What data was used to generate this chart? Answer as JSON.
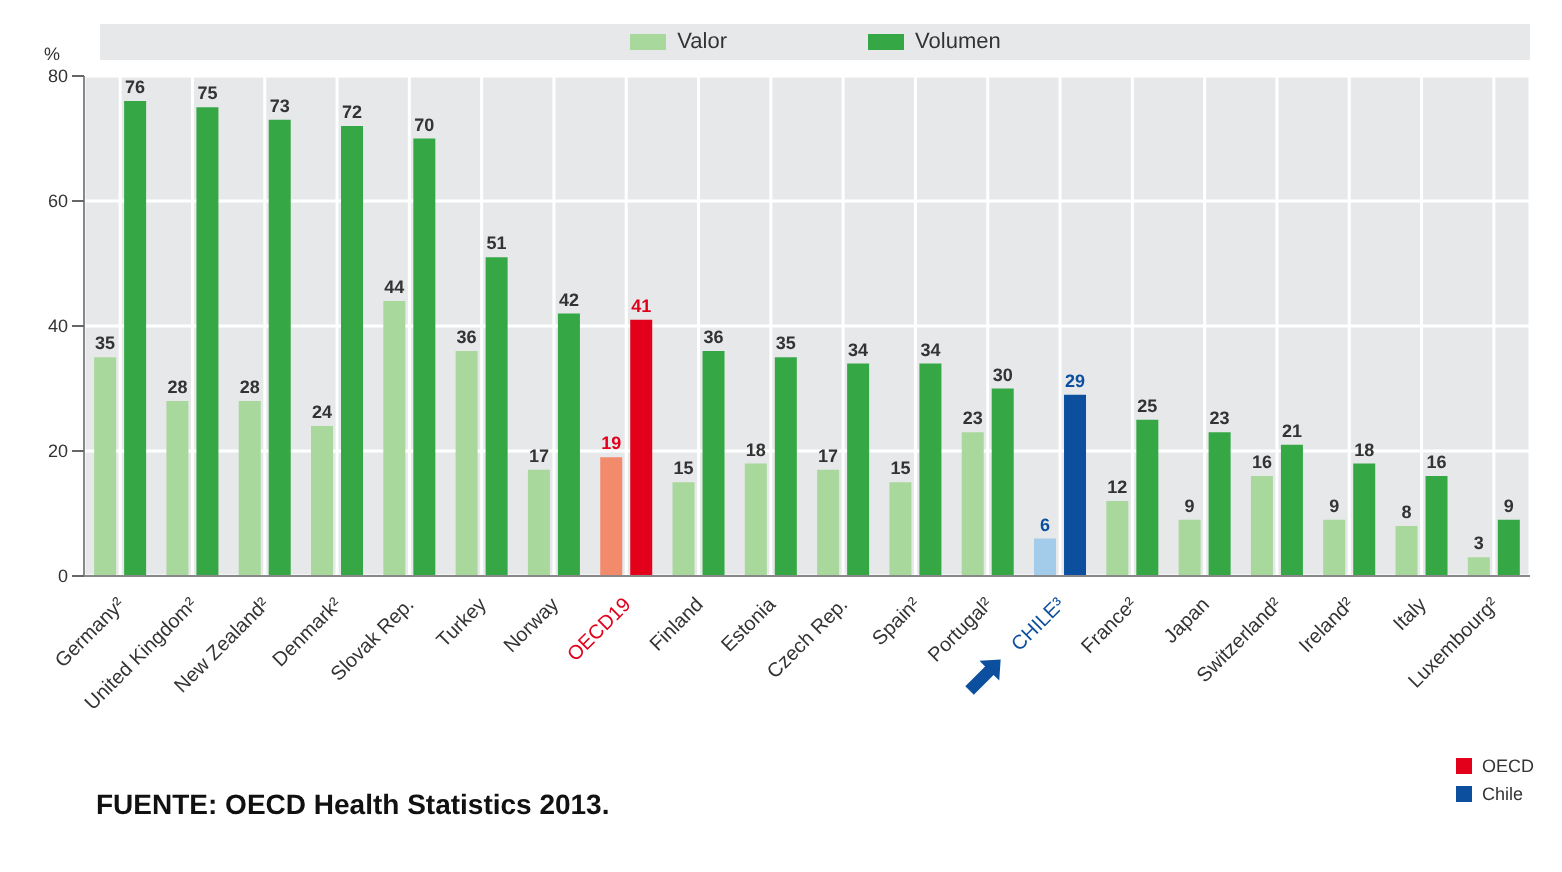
{
  "chart_data": {
    "type": "bar",
    "ylabel": "%",
    "categories": [
      "Germany²",
      "United Kingdom²",
      "New Zealand²",
      "Denmark²",
      "Slovak Rep.",
      "Turkey",
      "Norway",
      "OECD19",
      "Finland",
      "Estonia",
      "Czech Rep.",
      "Spain²",
      "Portugal²",
      "CHILE³",
      "France²",
      "Japan",
      "Switzerland²",
      "Ireland²",
      "Italy",
      "Luxembourg²"
    ],
    "series": [
      {
        "name": "Valor",
        "color": "#a8d89c",
        "colors": [
          "#a8d89c",
          "#a8d89c",
          "#a8d89c",
          "#a8d89c",
          "#a8d89c",
          "#a8d89c",
          "#a8d89c",
          "#f28b6c",
          "#a8d89c",
          "#a8d89c",
          "#a8d89c",
          "#a8d89c",
          "#a8d89c",
          "#a3cbea",
          "#a8d89c",
          "#a8d89c",
          "#a8d89c",
          "#a8d89c",
          "#a8d89c",
          "#a8d89c"
        ],
        "values": [
          35,
          28,
          28,
          24,
          44,
          36,
          17,
          19,
          15,
          18,
          17,
          15,
          23,
          6,
          12,
          9,
          16,
          9,
          8,
          3
        ]
      },
      {
        "name": "Volumen",
        "color": "#35a845",
        "colors": [
          "#35a845",
          "#35a845",
          "#35a845",
          "#35a845",
          "#35a845",
          "#35a845",
          "#35a845",
          "#e2001a",
          "#35a845",
          "#35a845",
          "#35a845",
          "#35a845",
          "#35a845",
          "#0b4f9e",
          "#35a845",
          "#35a845",
          "#35a845",
          "#35a845",
          "#35a845",
          "#35a845"
        ],
        "values": [
          76,
          75,
          73,
          72,
          70,
          51,
          42,
          41,
          36,
          35,
          34,
          34,
          30,
          29,
          25,
          23,
          21,
          18,
          16,
          9
        ]
      }
    ],
    "ylim": [
      0,
      80
    ],
    "yticks": [
      0,
      20,
      40,
      60,
      80
    ],
    "grid": true,
    "legend": "top",
    "data_labels": true,
    "annotations": [
      "FUENTE: OECD Health Statistics 2013.",
      "OECD",
      "Chile"
    ]
  }
}
